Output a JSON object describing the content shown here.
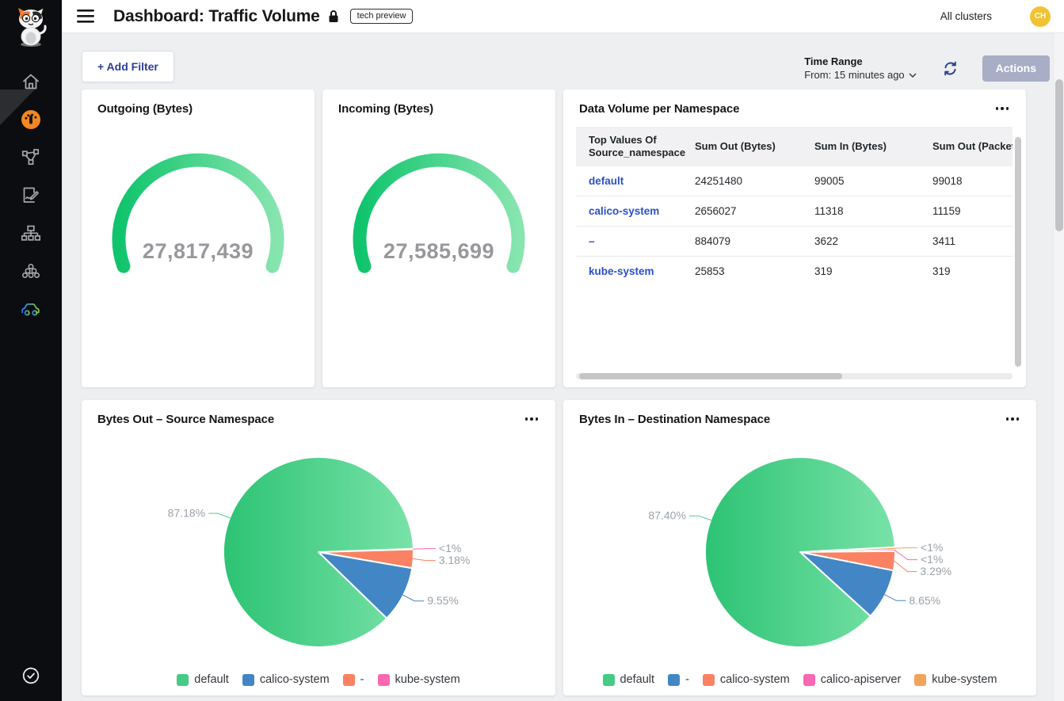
{
  "header": {
    "title": "Dashboard: Traffic Volume",
    "tech_preview_badge": "tech preview",
    "all_clusters": "All clusters",
    "avatar_initials": "CH"
  },
  "sidebar": {
    "icons": [
      "calico-cat-logo",
      "home-icon",
      "dashboard-gauge-icon",
      "service-graph-icon",
      "policies-icon",
      "network-topology-icon",
      "cluster-icon",
      "car-icon",
      "verified-check-icon"
    ],
    "active_icon": "dashboard-gauge-icon",
    "colors": {
      "background": "#0c0d10",
      "active_orange": "#f6861f",
      "icon_gray": "#a6a8ab"
    }
  },
  "toolbar": {
    "add_filter": "+ Add Filter",
    "time_range_label": "Time Range",
    "time_range_value": "From: 15 minutes ago",
    "actions": "Actions"
  },
  "gauge_cards": [
    {
      "title": "Outgoing (Bytes)",
      "value": "27,817,439"
    },
    {
      "title": "Incoming (Bytes)",
      "value": "27,585,699"
    }
  ],
  "table_card": {
    "title": "Data Volume per Namespace",
    "columns": [
      "Top Values Of Source_namespace",
      "Sum Out (Bytes)",
      "Sum In (Bytes)",
      "Sum Out (Packets)"
    ],
    "rows": [
      [
        "default",
        "24251480",
        "99005",
        "99018"
      ],
      [
        "calico-system",
        "2656027",
        "11318",
        "11159"
      ],
      [
        "–",
        "884079",
        "3622",
        "3411"
      ],
      [
        "kube-system",
        "25853",
        "319",
        "319"
      ]
    ],
    "link_color": "#2a50c7"
  },
  "pie_cards": [
    {
      "title": "Bytes Out – Source Namespace"
    },
    {
      "title": "Bytes In – Destination Namespace"
    }
  ],
  "chart_data": [
    {
      "type": "gauge",
      "title": "Outgoing (Bytes)",
      "value": 27817439,
      "unit": "Bytes",
      "value_display": "27,817,439",
      "arc_colors": [
        "#0fc46c",
        "#87e5af"
      ],
      "arc_span_deg": 220
    },
    {
      "type": "gauge",
      "title": "Incoming (Bytes)",
      "value": 27585699,
      "unit": "Bytes",
      "value_display": "27,585,699",
      "arc_colors": [
        "#0fc46c",
        "#87e5af"
      ],
      "arc_span_deg": 220
    },
    {
      "type": "pie",
      "title": "Bytes Out – Source Namespace",
      "start_angle": 2,
      "slices": [
        {
          "name": "kube-system",
          "label": "<1%",
          "value": 0.09,
          "color": "#f968b1"
        },
        {
          "name": "-",
          "label": "3.18%",
          "value": 3.18,
          "color": "#fa8262"
        },
        {
          "name": "calico-system",
          "label": "9.55%",
          "value": 9.55,
          "color": "#4286c5"
        },
        {
          "name": "default",
          "label": "87.18%",
          "value": 87.18,
          "color": "green-gradient"
        }
      ],
      "legend": [
        {
          "name": "default",
          "color": "green"
        },
        {
          "name": "calico-system",
          "color": "#4286c5"
        },
        {
          "name": "-",
          "color": "#fa8262"
        },
        {
          "name": "kube-system",
          "color": "#f968b1"
        }
      ]
    },
    {
      "type": "pie",
      "title": "Bytes In – Destination Namespace",
      "start_angle": 3,
      "slices": [
        {
          "name": "kube-system",
          "label": "<1%",
          "value": 0.4,
          "color": "#f3a45b"
        },
        {
          "name": "calico-apiserver",
          "label": "<1%",
          "value": 0.26,
          "color": "#f968b1"
        },
        {
          "name": "calico-system",
          "label": "3.29%",
          "value": 3.29,
          "color": "#fa8262"
        },
        {
          "name": "-",
          "label": "8.65%",
          "value": 8.65,
          "color": "#4286c5"
        },
        {
          "name": "default",
          "label": "87.40%",
          "value": 87.4,
          "color": "green-gradient"
        }
      ],
      "legend": [
        {
          "name": "default",
          "color": "green"
        },
        {
          "name": "-",
          "color": "#4286c5"
        },
        {
          "name": "calico-system",
          "color": "#fa8262"
        },
        {
          "name": "calico-apiserver",
          "color": "#f968b1"
        },
        {
          "name": "kube-system",
          "color": "#f3a45b"
        }
      ]
    }
  ]
}
